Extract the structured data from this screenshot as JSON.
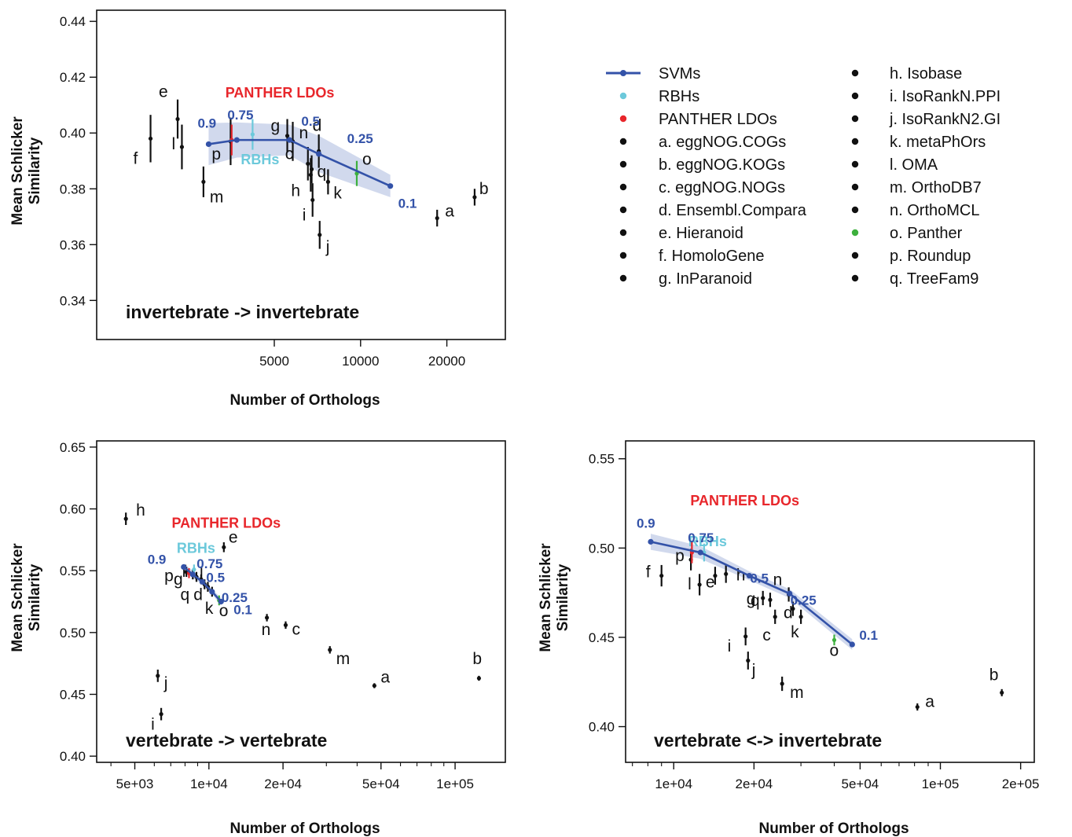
{
  "colors": {
    "svm": "#3352a8",
    "band": "#c9d2ea",
    "rbh": "#6cc9db",
    "panther_ldo": "#e8262b",
    "panther": "#3db03d",
    "other": "#111111"
  },
  "legend": {
    "items": [
      {
        "label": "SVMs",
        "kind": "svm",
        "color": "#3352a8"
      },
      {
        "label": "RBHs",
        "kind": "dot",
        "color": "#6cc9db"
      },
      {
        "label": "PANTHER LDOs",
        "kind": "dot",
        "color": "#e8262b"
      },
      {
        "label": "a. eggNOG.COGs",
        "kind": "dot",
        "color": "#111111"
      },
      {
        "label": "b. eggNOG.KOGs",
        "kind": "dot",
        "color": "#111111"
      },
      {
        "label": "c. eggNOG.NOGs",
        "kind": "dot",
        "color": "#111111"
      },
      {
        "label": "d. Ensembl.Compara",
        "kind": "dot",
        "color": "#111111"
      },
      {
        "label": "e. Hieranoid",
        "kind": "dot",
        "color": "#111111"
      },
      {
        "label": "f. HomoloGene",
        "kind": "dot",
        "color": "#111111"
      },
      {
        "label": "g. InParanoid",
        "kind": "dot",
        "color": "#111111"
      },
      {
        "label": "h. Isobase",
        "kind": "dot",
        "color": "#111111"
      },
      {
        "label": "i. IsoRankN.PPI",
        "kind": "dot",
        "color": "#111111"
      },
      {
        "label": "j. IsoRankN2.GI",
        "kind": "dot",
        "color": "#111111"
      },
      {
        "label": "k. metaPhOrs",
        "kind": "dot",
        "color": "#111111"
      },
      {
        "label": "l. OMA",
        "kind": "dot",
        "color": "#111111"
      },
      {
        "label": "m. OrthoDB7",
        "kind": "dot",
        "color": "#111111"
      },
      {
        "label": "n. OrthoMCL",
        "kind": "dot",
        "color": "#111111"
      },
      {
        "label": "o. Panther",
        "kind": "dot",
        "color": "#3db03d"
      },
      {
        "label": "p. Roundup",
        "kind": "dot",
        "color": "#111111"
      },
      {
        "label": "q. TreeFam9",
        "kind": "dot",
        "color": "#111111"
      }
    ]
  },
  "chart_data": [
    {
      "type": "scatter",
      "title": "invertebrate -> invertebrate",
      "xlabel": "Number of Orthologs",
      "ylabel": "Mean Schlicker Similarity",
      "xscale": "log",
      "xlim": [
        1200,
        32000
      ],
      "ylim": [
        0.326,
        0.444
      ],
      "xticks": [
        5000,
        10000,
        20000
      ],
      "xtick_labels": [
        "5000",
        "10000",
        "20000"
      ],
      "yticks": [
        0.34,
        0.36,
        0.38,
        0.4,
        0.42,
        0.44
      ],
      "ytick_labels": [
        "0.34",
        "0.36",
        "0.38",
        "0.40",
        "0.42",
        "0.44"
      ],
      "svm": {
        "x": [
          2950,
          3700,
          5650,
          7150,
          12700
        ],
        "y": [
          0.396,
          0.3975,
          0.3975,
          0.3925,
          0.381
        ],
        "band_upper": [
          0.4035,
          0.4038,
          0.403,
          0.399,
          0.385
        ],
        "band_lower": [
          0.3885,
          0.3912,
          0.392,
          0.386,
          0.377
        ],
        "labels": [
          "0.9",
          "0.75",
          "0.5",
          "0.25",
          "0.1"
        ]
      },
      "points": [
        {
          "label": "a",
          "x": 18500,
          "y": 0.3695,
          "err": 0.003
        },
        {
          "label": "b",
          "x": 25000,
          "y": 0.377,
          "err": 0.003
        },
        {
          "label": "c",
          "x": 6550,
          "y": 0.389,
          "err": 0.006
        },
        {
          "label": "d",
          "x": 7150,
          "y": 0.3935,
          "err": 0.006
        },
        {
          "label": "e",
          "x": 2300,
          "y": 0.405,
          "err": 0.007
        },
        {
          "label": "f",
          "x": 1850,
          "y": 0.398,
          "err": 0.0085
        },
        {
          "label": "g",
          "x": 5550,
          "y": 0.399,
          "err": 0.006
        },
        {
          "label": "h",
          "x": 6700,
          "y": 0.385,
          "err": 0.006
        },
        {
          "label": "i",
          "x": 6800,
          "y": 0.376,
          "err": 0.006
        },
        {
          "label": "j",
          "x": 7200,
          "y": 0.3635,
          "err": 0.005
        },
        {
          "label": "k",
          "x": 7700,
          "y": 0.3825,
          "err": 0.0045
        },
        {
          "label": "l",
          "x": 2380,
          "y": 0.395,
          "err": 0.008
        },
        {
          "label": "m",
          "x": 2830,
          "y": 0.3825,
          "err": 0.0055
        },
        {
          "label": "n",
          "x": 5800,
          "y": 0.397,
          "err": 0.007
        },
        {
          "label": "o",
          "x": 9700,
          "y": 0.3855,
          "err": 0.0045,
          "color": "#3db03d"
        },
        {
          "label": "p",
          "x": 3520,
          "y": 0.397,
          "err": 0.0085
        },
        {
          "label": "q",
          "x": 6750,
          "y": 0.387,
          "err": 0.005
        },
        {
          "label": "RBHs",
          "x": 4200,
          "y": 0.3995,
          "err": 0.0055,
          "color": "#6cc9db"
        },
        {
          "label": "PANTHER LDOs",
          "x": 3550,
          "y": 0.3975,
          "err": 0.0055,
          "color": "#e8262b"
        }
      ]
    },
    {
      "type": "scatter",
      "title": "vertebrate -> vertebrate",
      "xlabel": "Number of Orthologs",
      "ylabel": "Mean Schlicker Similarity",
      "xscale": "log",
      "xlim": [
        3500,
        160000
      ],
      "ylim": [
        0.395,
        0.655
      ],
      "xticks": [
        5000,
        10000,
        20000,
        50000,
        100000
      ],
      "xtick_labels": [
        "5e+03",
        "1e+04",
        "2e+04",
        "5e+04",
        "1e+05"
      ],
      "yticks": [
        0.4,
        0.45,
        0.5,
        0.55,
        0.6,
        0.65
      ],
      "ytick_labels": [
        "0.40",
        "0.45",
        "0.50",
        "0.55",
        "0.60",
        "0.65"
      ],
      "svm": {
        "x": [
          7900,
          8600,
          9400,
          10300,
          11200
        ],
        "y": [
          0.553,
          0.547,
          0.541,
          0.533,
          0.525
        ],
        "band_upper": [
          0.556,
          0.55,
          0.543,
          0.535,
          0.528
        ],
        "band_lower": [
          0.55,
          0.544,
          0.539,
          0.531,
          0.522
        ],
        "labels": [
          "0.9",
          "0.75",
          "0.5",
          "0.25",
          "0.1"
        ]
      },
      "points": [
        {
          "label": "a",
          "x": 47000,
          "y": 0.457,
          "err": 0.002
        },
        {
          "label": "b",
          "x": 125000,
          "y": 0.463,
          "err": 0.002
        },
        {
          "label": "c",
          "x": 20500,
          "y": 0.506,
          "err": 0.003
        },
        {
          "label": "d",
          "x": 9600,
          "y": 0.539,
          "err": 0.004
        },
        {
          "label": "e",
          "x": 11500,
          "y": 0.569,
          "err": 0.004
        },
        {
          "label": "f",
          "x": 8600,
          "y": 0.547,
          "err": 0.004
        },
        {
          "label": "g",
          "x": 8900,
          "y": 0.545,
          "err": 0.004
        },
        {
          "label": "h",
          "x": 4600,
          "y": 0.592,
          "err": 0.005
        },
        {
          "label": "i",
          "x": 6400,
          "y": 0.434,
          "err": 0.005
        },
        {
          "label": "j",
          "x": 6200,
          "y": 0.465,
          "err": 0.005
        },
        {
          "label": "k",
          "x": 10300,
          "y": 0.533,
          "err": 0.004
        },
        {
          "label": "l",
          "x": 9300,
          "y": 0.543,
          "err": 0.004
        },
        {
          "label": "m",
          "x": 31000,
          "y": 0.486,
          "err": 0.003
        },
        {
          "label": "n",
          "x": 17200,
          "y": 0.512,
          "err": 0.003
        },
        {
          "label": "o",
          "x": 11000,
          "y": 0.526,
          "err": 0.004,
          "color": "#3db03d"
        },
        {
          "label": "p",
          "x": 8100,
          "y": 0.549,
          "err": 0.004
        },
        {
          "label": "q",
          "x": 9900,
          "y": 0.537,
          "err": 0.004
        },
        {
          "label": "RBHs",
          "x": 8700,
          "y": 0.551,
          "err": 0.004,
          "color": "#6cc9db"
        },
        {
          "label": "PANTHER LDOs",
          "x": 8300,
          "y": 0.548,
          "err": 0.004,
          "color": "#e8262b"
        }
      ]
    },
    {
      "type": "scatter",
      "title": "vertebrate <-> invertebrate",
      "xlabel": "Number of Orthologs",
      "ylabel": "Mean Schlicker Similarity",
      "xscale": "log",
      "xlim": [
        6600,
        225000
      ],
      "ylim": [
        0.38,
        0.56
      ],
      "xticks": [
        10000,
        20000,
        50000,
        100000,
        200000
      ],
      "xtick_labels": [
        "1e+04",
        "2e+04",
        "5e+04",
        "1e+05",
        "2e+05"
      ],
      "yticks": [
        0.4,
        0.45,
        0.5,
        0.55
      ],
      "ytick_labels": [
        "0.40",
        "0.45",
        "0.50",
        "0.55"
      ],
      "svm": {
        "x": [
          8200,
          12600,
          19200,
          27200,
          46700
        ],
        "y": [
          0.5035,
          0.4975,
          0.4845,
          0.4745,
          0.446
        ],
        "band_upper": [
          0.508,
          0.501,
          0.487,
          0.477,
          0.449
        ],
        "band_lower": [
          0.499,
          0.494,
          0.482,
          0.472,
          0.443
        ],
        "labels": [
          "0.9",
          "0.75",
          "0.5",
          "0.25",
          "0.1"
        ]
      },
      "points": [
        {
          "label": "a",
          "x": 82000,
          "y": 0.411,
          "err": 0.002
        },
        {
          "label": "b",
          "x": 170000,
          "y": 0.419,
          "err": 0.002
        },
        {
          "label": "c",
          "x": 24000,
          "y": 0.4615,
          "err": 0.004
        },
        {
          "label": "d",
          "x": 28000,
          "y": 0.466,
          "err": 0.004
        },
        {
          "label": "e",
          "x": 14300,
          "y": 0.4845,
          "err": 0.005
        },
        {
          "label": "f",
          "x": 9000,
          "y": 0.4845,
          "err": 0.006
        },
        {
          "label": "g",
          "x": 21600,
          "y": 0.472,
          "err": 0.004
        },
        {
          "label": "h",
          "x": 15700,
          "y": 0.4855,
          "err": 0.005
        },
        {
          "label": "i",
          "x": 18600,
          "y": 0.4505,
          "err": 0.005
        },
        {
          "label": "j",
          "x": 19000,
          "y": 0.437,
          "err": 0.005
        },
        {
          "label": "k",
          "x": 30000,
          "y": 0.4615,
          "err": 0.004
        },
        {
          "label": "l",
          "x": 12500,
          "y": 0.4795,
          "err": 0.006
        },
        {
          "label": "m",
          "x": 25500,
          "y": 0.424,
          "err": 0.004
        },
        {
          "label": "n",
          "x": 27000,
          "y": 0.474,
          "err": 0.004
        },
        {
          "label": "o",
          "x": 40000,
          "y": 0.4485,
          "err": 0.003,
          "color": "#3db03d"
        },
        {
          "label": "p",
          "x": 11600,
          "y": 0.4935,
          "err": 0.006
        },
        {
          "label": "q",
          "x": 23000,
          "y": 0.471,
          "err": 0.004
        },
        {
          "label": "RBHs",
          "x": 13000,
          "y": 0.4975,
          "err": 0.005,
          "color": "#6cc9db"
        },
        {
          "label": "PANTHER LDOs",
          "x": 11700,
          "y": 0.4975,
          "err": 0.006,
          "color": "#e8262b"
        }
      ]
    }
  ]
}
